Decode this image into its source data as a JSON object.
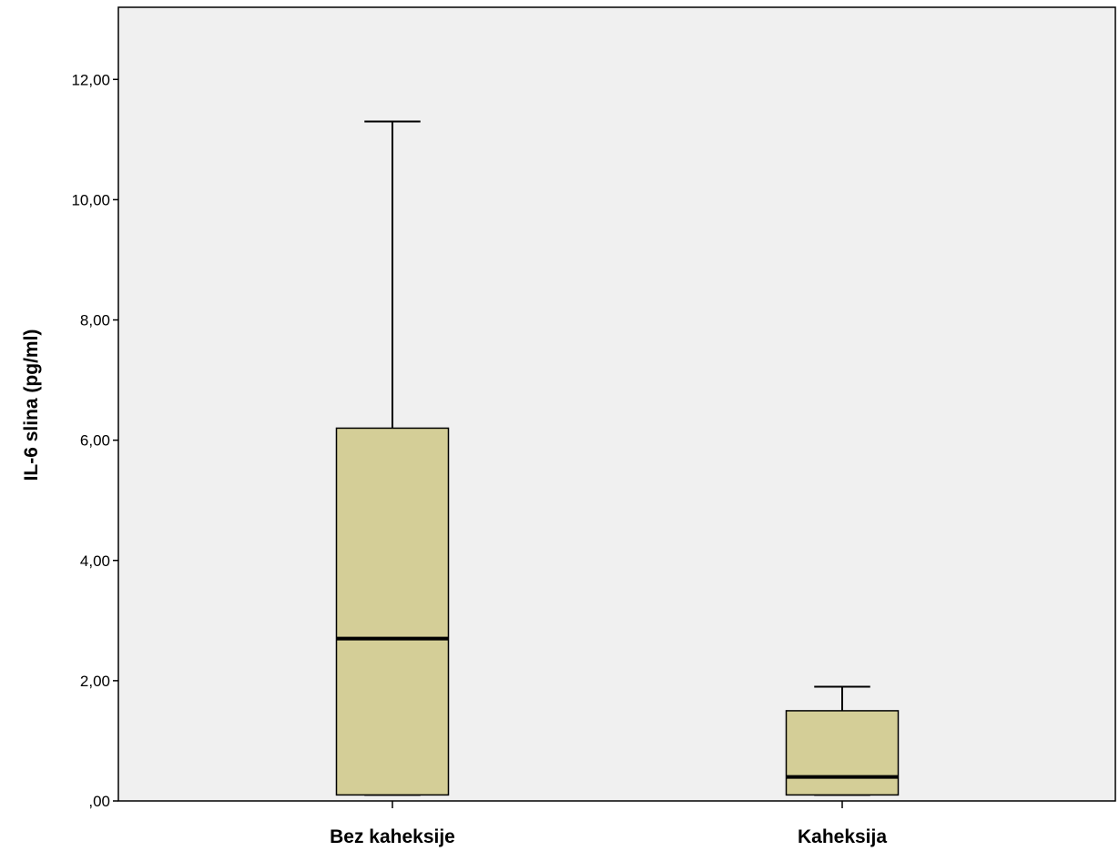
{
  "chart_data": {
    "type": "boxplot",
    "title": "",
    "xlabel": "",
    "ylabel": "IL-6 slina (pg/ml)",
    "ylim": [
      0,
      13.2
    ],
    "y_ticks": [
      0,
      2,
      4,
      6,
      8,
      10,
      12
    ],
    "y_tick_labels": [
      ",00",
      "2,00",
      "4,00",
      "6,00",
      "8,00",
      "10,00",
      "12,00"
    ],
    "grid": false,
    "categories": [
      "Bez kaheksije",
      "Kaheksija"
    ],
    "boxes": [
      {
        "category": "Bez kaheksije",
        "min": 0.1,
        "q1": 0.1,
        "median": 2.7,
        "q3": 6.2,
        "max": 11.3
      },
      {
        "category": "Kaheksija",
        "min": 0.1,
        "q1": 0.1,
        "median": 0.4,
        "q3": 1.5,
        "max": 1.9
      }
    ],
    "colors": {
      "box_fill": "#d4ce97",
      "plot_background": "#f0f0f0",
      "stroke": "#000000"
    }
  }
}
